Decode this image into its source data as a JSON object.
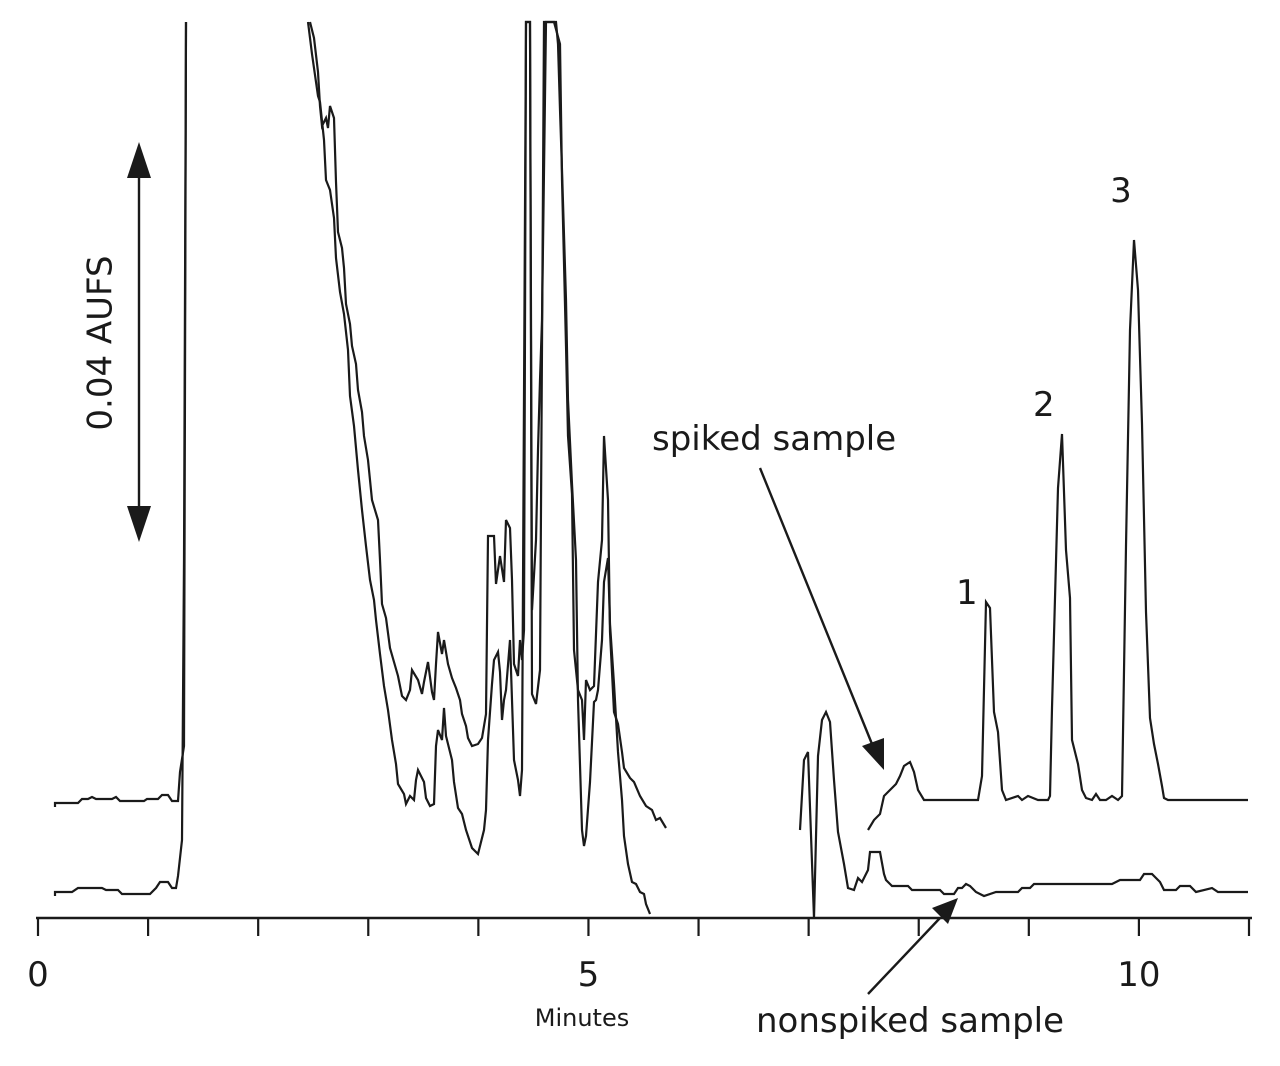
{
  "chart_data": {
    "type": "line",
    "title": "",
    "xlabel": "Minutes",
    "ylabel": "",
    "xlim": [
      0,
      11
    ],
    "x_ticks_major": [
      0,
      5,
      10
    ],
    "x_ticks_minor": [
      1,
      2,
      3,
      4,
      6,
      7,
      8,
      9,
      11
    ],
    "grid": false,
    "legend": "none",
    "scale_bar_label": "0.04 AUFS",
    "series": [
      {
        "name": "spiked sample",
        "points": [
          [
            0.15,
            0.2
          ],
          [
            1.3,
            0.22
          ],
          [
            1.33,
            0.35
          ],
          [
            1.38,
            9.0
          ],
          [
            2.5,
            8.6
          ],
          [
            2.7,
            7.6
          ],
          [
            3.0,
            6.5
          ],
          [
            3.2,
            3.6
          ],
          [
            3.3,
            2.6
          ],
          [
            3.45,
            2.1
          ],
          [
            3.6,
            2.4
          ],
          [
            3.8,
            1.7
          ],
          [
            4.0,
            1.0
          ],
          [
            4.1,
            2.1
          ],
          [
            4.2,
            1.4
          ],
          [
            4.3,
            2.8
          ],
          [
            4.4,
            1.2
          ],
          [
            4.5,
            1.4
          ],
          [
            4.57,
            9.0
          ],
          [
            4.62,
            6.0
          ],
          [
            4.72,
            9.0
          ],
          [
            4.8,
            3.2
          ],
          [
            4.9,
            1.8
          ],
          [
            5.0,
            1.0
          ],
          [
            5.1,
            1.2
          ],
          [
            5.18,
            2.6
          ],
          [
            5.24,
            3.6
          ],
          [
            5.3,
            1.8
          ],
          [
            5.4,
            0.9
          ],
          [
            5.6,
            0.4
          ],
          [
            5.8,
            0.1
          ]
        ]
      },
      {
        "name": "nonspiked sample",
        "points": [
          [
            0.15,
            0.05
          ],
          [
            1.3,
            0.07
          ],
          [
            1.33,
            0.5
          ],
          [
            1.38,
            9.0
          ],
          [
            2.5,
            8.6
          ],
          [
            2.7,
            7.4
          ],
          [
            3.0,
            5.2
          ],
          [
            3.2,
            2.3
          ],
          [
            3.3,
            1.6
          ],
          [
            3.45,
            1.0
          ],
          [
            3.6,
            1.7
          ],
          [
            3.8,
            0.8
          ],
          [
            4.0,
            0.5
          ],
          [
            4.1,
            0.8
          ],
          [
            4.2,
            0.6
          ],
          [
            4.3,
            2.8
          ],
          [
            4.4,
            1.6
          ],
          [
            4.5,
            1.2
          ],
          [
            4.57,
            9.0
          ],
          [
            4.62,
            6.0
          ],
          [
            4.72,
            9.0
          ],
          [
            4.8,
            1.5
          ],
          [
            4.9,
            0.9
          ],
          [
            5.0,
            0.6
          ],
          [
            5.1,
            1.0
          ],
          [
            5.18,
            3.5
          ],
          [
            5.24,
            1.8
          ],
          [
            5.3,
            0.7
          ],
          [
            5.4,
            0.5
          ],
          [
            5.6,
            0.15
          ],
          [
            5.7,
            0.05
          ]
        ]
      }
    ],
    "peak_labels": [
      {
        "label": "1",
        "x": 8.6
      },
      {
        "label": "2",
        "x": 9.3
      },
      {
        "label": "3",
        "x": 10.0
      }
    ],
    "annotations": [
      {
        "text": "spiked sample"
      },
      {
        "text": "nonspiked sample"
      }
    ]
  }
}
